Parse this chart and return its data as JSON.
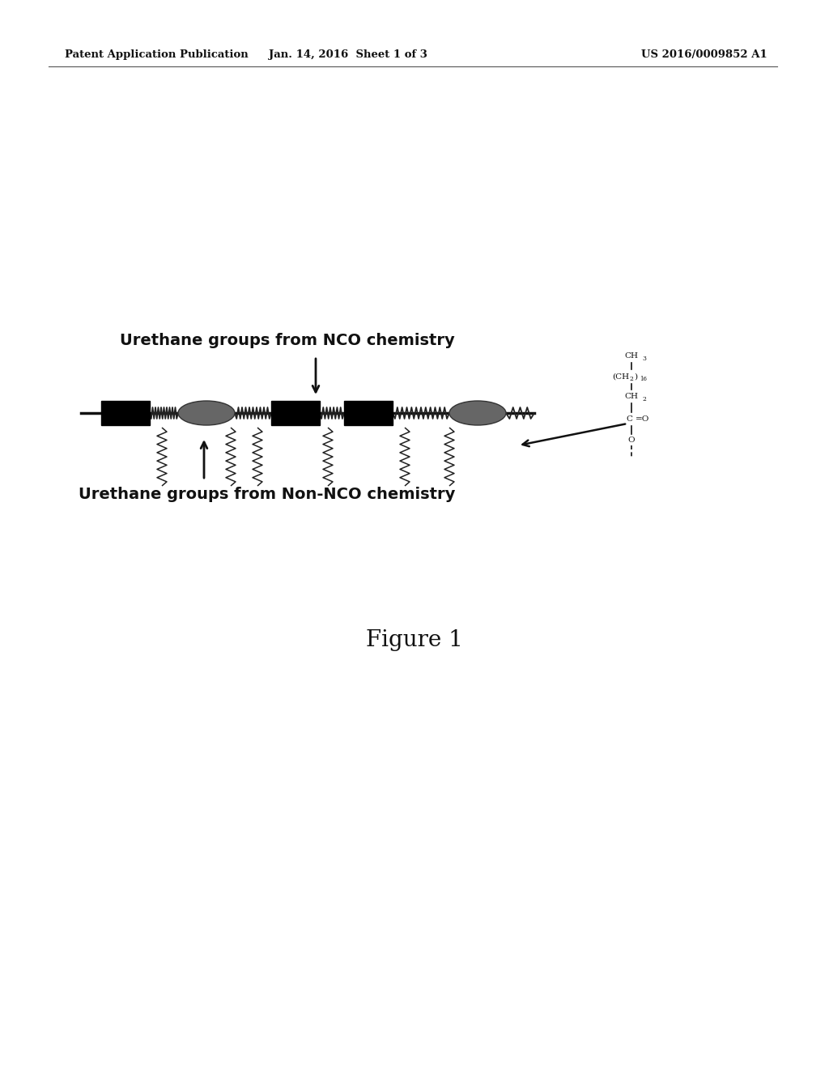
{
  "bg_color": "#ffffff",
  "header_left": "Patent Application Publication",
  "header_mid": "Jan. 14, 2016  Sheet 1 of 3",
  "header_right": "US 2016/0009852 A1",
  "label_nco": "Urethane groups from NCO chemistry",
  "label_non_nco": "Urethane groups from Non-NCO chemistry",
  "figure_caption": "Figure 1",
  "rect_color": "#000000",
  "ellipse_color": "#666666",
  "zigzag_color": "#222222",
  "chain_color": "#111111",
  "text_color": "#111111"
}
